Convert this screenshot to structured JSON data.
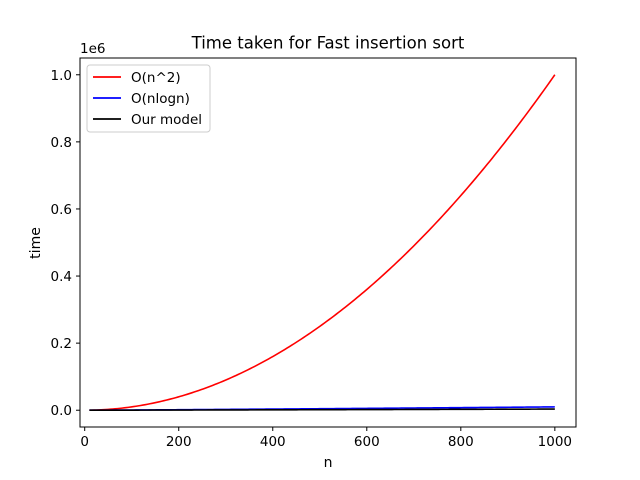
{
  "chart_data": {
    "type": "line",
    "title": "Time taken for Fast insertion sort",
    "xlabel": "n",
    "ylabel": "time",
    "y_offset_text": "1e6",
    "xlim": [
      -10,
      1045
    ],
    "ylim": [
      -50000,
      1050000
    ],
    "x_ticks": [
      0,
      200,
      400,
      600,
      800,
      1000
    ],
    "y_ticks": [
      0,
      200000,
      400000,
      600000,
      800000,
      1000000
    ],
    "y_tick_labels": [
      "0.0",
      "0.2",
      "0.4",
      "0.6",
      "0.8",
      "1.0"
    ],
    "legend_position": "top-left",
    "grid": false,
    "series": [
      {
        "name": "O(n^2)",
        "color": "#ff0000",
        "formula": "n^2",
        "x_start": 10,
        "x_end": 1000
      },
      {
        "name": "O(nlogn)",
        "color": "#0000ff",
        "formula": "n*log2(n)",
        "x_start": 10,
        "x_end": 1000
      },
      {
        "name": "Our model",
        "color": "#000000",
        "formula": "n*ln(n)/2",
        "x_start": 10,
        "x_end": 1000
      }
    ]
  }
}
